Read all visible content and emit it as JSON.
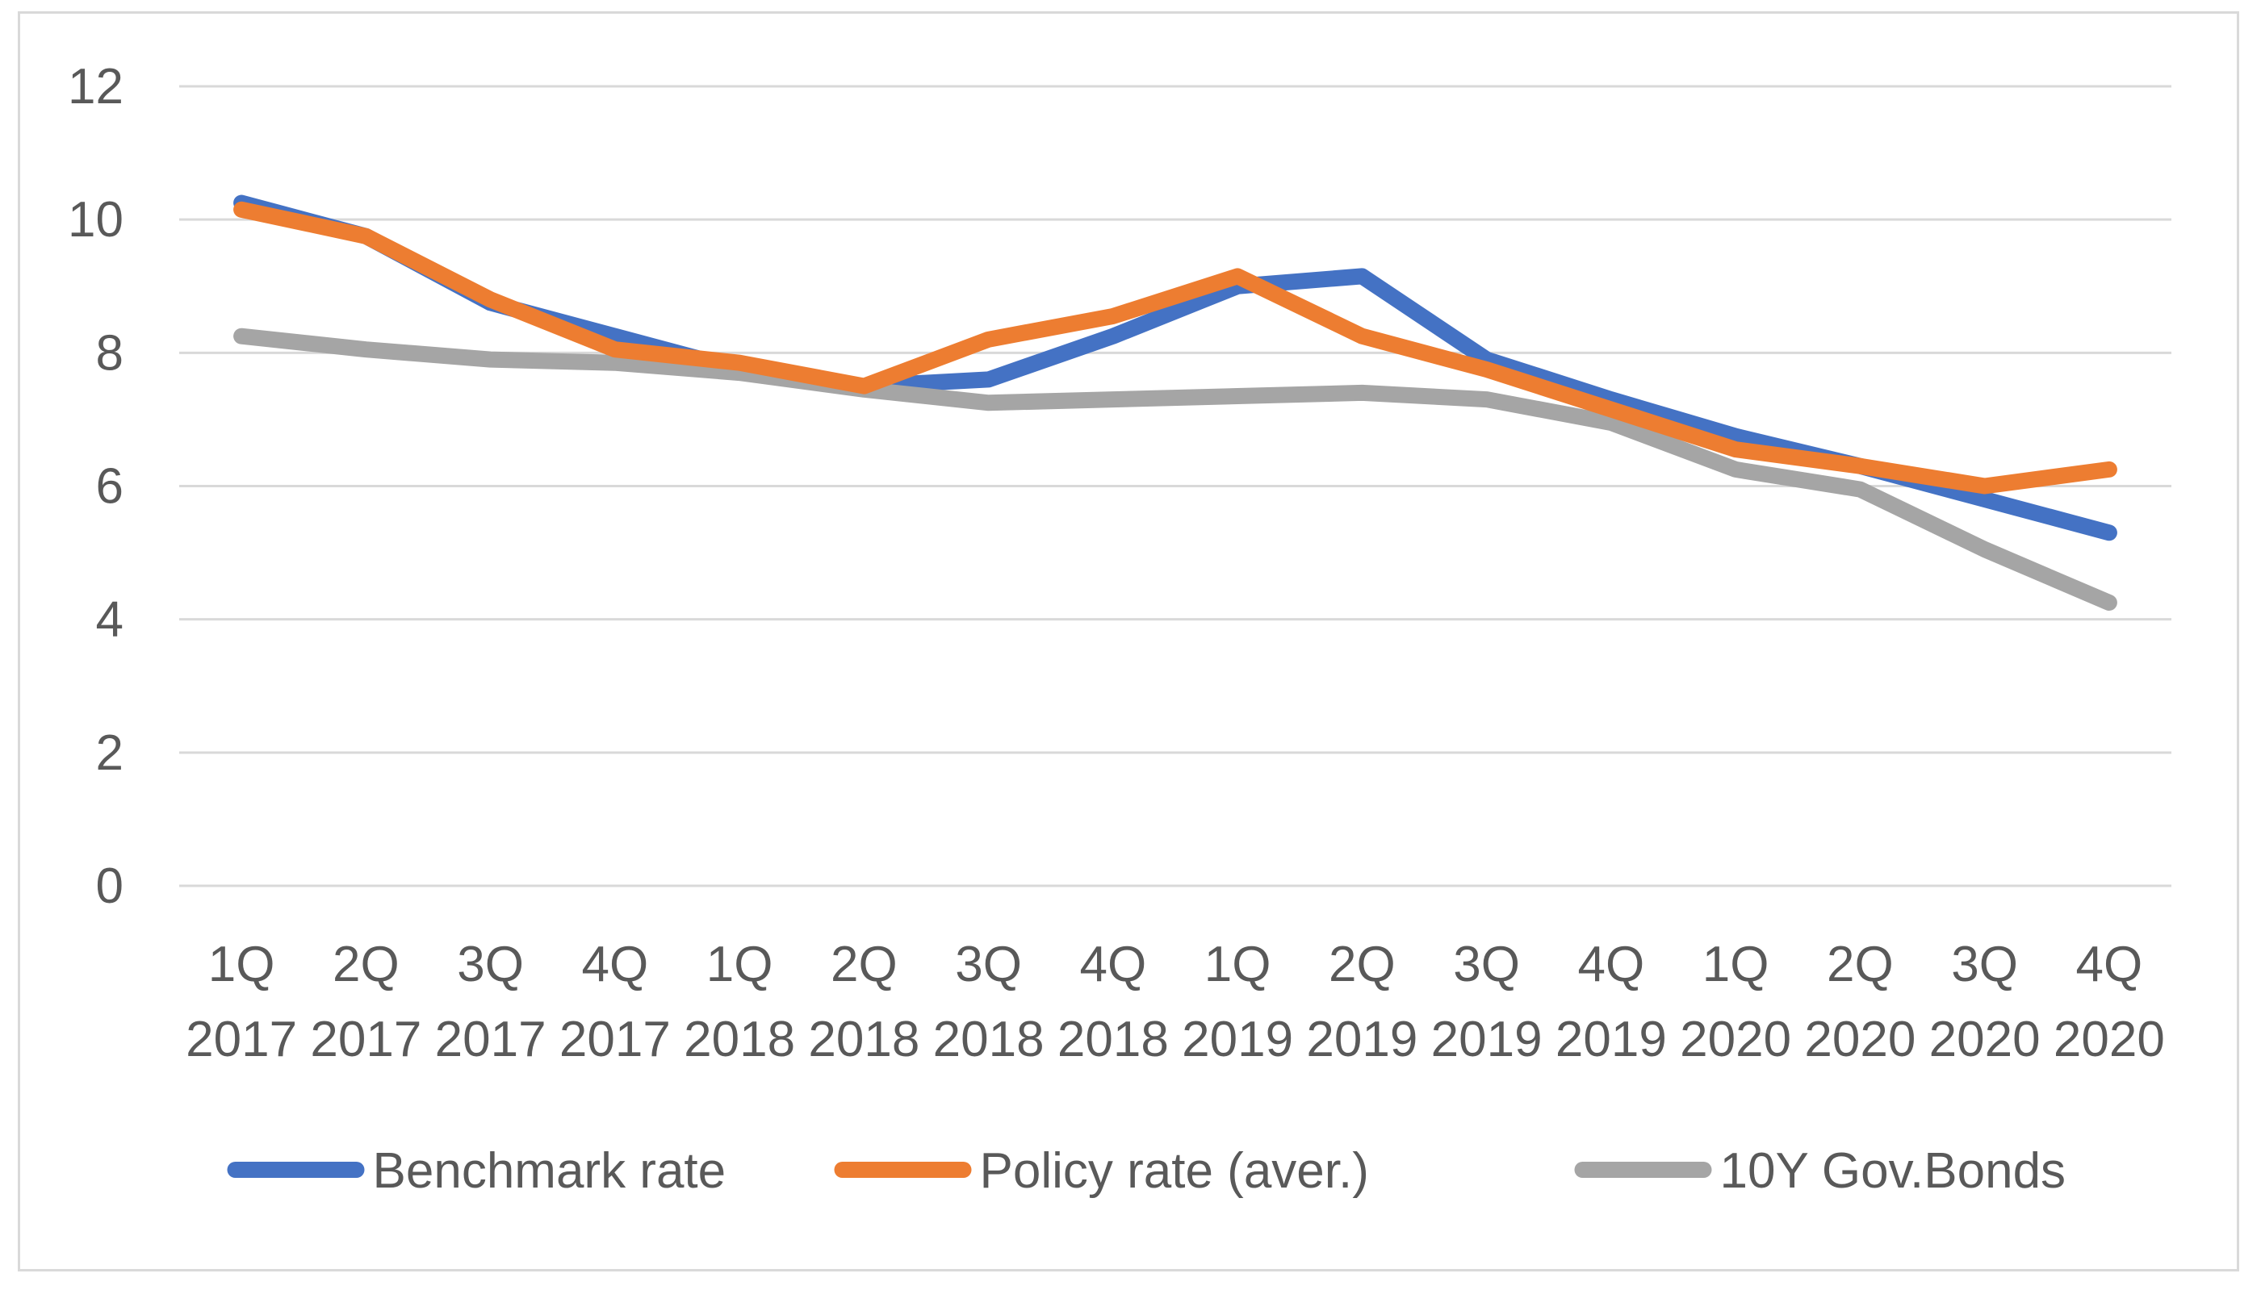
{
  "chart_data": {
    "type": "line",
    "title": "",
    "xlabel": "",
    "ylabel": "",
    "ylim": [
      0,
      12
    ],
    "yticks": [
      0,
      2,
      4,
      6,
      8,
      10,
      12
    ],
    "grid": true,
    "legend_position": "bottom",
    "categories": [
      [
        "1Q",
        "2017"
      ],
      [
        "2Q",
        "2017"
      ],
      [
        "3Q",
        "2017"
      ],
      [
        "4Q",
        "2017"
      ],
      [
        "1Q",
        "2018"
      ],
      [
        "2Q",
        "2018"
      ],
      [
        "3Q",
        "2018"
      ],
      [
        "4Q",
        "2018"
      ],
      [
        "1Q",
        "2019"
      ],
      [
        "2Q",
        "2019"
      ],
      [
        "3Q",
        "2019"
      ],
      [
        "4Q",
        "2019"
      ],
      [
        "1Q",
        "2020"
      ],
      [
        "2Q",
        "2020"
      ],
      [
        "3Q",
        "2020"
      ],
      [
        "4Q",
        "2020"
      ]
    ],
    "series": [
      {
        "name": "Benchmark rate",
        "color": "#4472c4",
        "values": [
          10.25,
          9.75,
          8.75,
          8.25,
          7.75,
          7.5,
          7.6,
          8.25,
          9.0,
          9.15,
          7.9,
          7.3,
          6.75,
          6.3,
          5.8,
          5.3
        ]
      },
      {
        "name": "Policy rate (aver.)",
        "color": "#ed7d31",
        "values": [
          10.15,
          9.75,
          8.8,
          8.05,
          7.85,
          7.5,
          8.2,
          8.55,
          9.15,
          8.25,
          7.75,
          7.15,
          6.55,
          6.3,
          6.0,
          6.25
        ]
      },
      {
        "name": "10Y Gov.Bonds",
        "color": "#a5a5a5",
        "values": [
          8.25,
          8.05,
          7.9,
          7.85,
          7.7,
          7.45,
          7.25,
          7.3,
          7.35,
          7.4,
          7.3,
          6.95,
          6.25,
          5.95,
          5.05,
          4.25
        ]
      }
    ]
  }
}
